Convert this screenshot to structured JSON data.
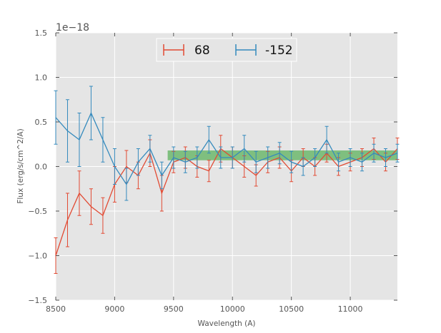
{
  "chart_data": {
    "type": "line",
    "title": "",
    "xlabel": "Wavelength (A)",
    "ylabel": "Flux (erg/s/cm^2/A)",
    "offset_text": "1e−18",
    "xlim": [
      8500,
      11400
    ],
    "ylim": [
      -1.5,
      1.5
    ],
    "xticks": [
      8500,
      9000,
      9500,
      10000,
      10500,
      11000
    ],
    "xtick_labels": [
      "8500",
      "9000",
      "9500",
      "10000",
      "10500",
      "11000"
    ],
    "yticks": [
      -1.5,
      -1.0,
      -0.5,
      0.0,
      0.5,
      1.0,
      1.5
    ],
    "ytick_labels": [
      "−1.5",
      "−1.0",
      "−0.5",
      "0.0",
      "0.5",
      "1.0",
      "1.5"
    ],
    "grid": true,
    "legend_position": "top-center",
    "band": {
      "x": [
        9450,
        11400
      ],
      "y": [
        0.07,
        0.18
      ],
      "color": "#2ca02c"
    },
    "series": [
      {
        "name": "68",
        "color": "#e24a33",
        "x": [
          8500,
          8600,
          8700,
          8800,
          8900,
          9000,
          9100,
          9200,
          9300,
          9400,
          9500,
          9600,
          9700,
          9800,
          9900,
          10000,
          10100,
          10200,
          10300,
          10400,
          10500,
          10600,
          10700,
          10800,
          10900,
          11000,
          11100,
          11200,
          11300,
          11400
        ],
        "y": [
          -1.0,
          -0.6,
          -0.3,
          -0.45,
          -0.55,
          -0.2,
          0.0,
          -0.1,
          0.15,
          -0.3,
          0.05,
          0.1,
          0.0,
          -0.05,
          0.2,
          0.1,
          0.0,
          -0.1,
          0.05,
          0.1,
          -0.05,
          0.1,
          0.0,
          0.15,
          0.0,
          0.05,
          0.1,
          0.2,
          0.05,
          0.2
        ],
        "err": [
          0.2,
          0.3,
          0.25,
          0.2,
          0.2,
          0.2,
          0.18,
          0.15,
          0.15,
          0.2,
          0.12,
          0.12,
          0.12,
          0.12,
          0.15,
          0.12,
          0.12,
          0.12,
          0.12,
          0.12,
          0.12,
          0.1,
          0.1,
          0.1,
          0.1,
          0.1,
          0.1,
          0.12,
          0.1,
          0.12
        ]
      },
      {
        "name": "-152",
        "color": "#348abd",
        "x": [
          8500,
          8600,
          8700,
          8800,
          8900,
          9000,
          9100,
          9200,
          9300,
          9400,
          9500,
          9600,
          9700,
          9800,
          9900,
          10000,
          10100,
          10200,
          10300,
          10400,
          10500,
          10600,
          10700,
          10800,
          10900,
          11000,
          11100,
          11200,
          11300,
          11400
        ],
        "y": [
          0.55,
          0.4,
          0.3,
          0.6,
          0.3,
          0.0,
          -0.2,
          0.05,
          0.2,
          -0.1,
          0.1,
          0.05,
          0.1,
          0.3,
          0.1,
          0.1,
          0.2,
          0.05,
          0.1,
          0.15,
          0.05,
          0.0,
          0.1,
          0.3,
          0.05,
          0.1,
          0.05,
          0.15,
          0.1,
          0.15
        ],
        "err": [
          0.3,
          0.35,
          0.3,
          0.3,
          0.25,
          0.2,
          0.18,
          0.15,
          0.15,
          0.15,
          0.12,
          0.12,
          0.12,
          0.15,
          0.12,
          0.12,
          0.15,
          0.12,
          0.12,
          0.12,
          0.12,
          0.1,
          0.1,
          0.15,
          0.1,
          0.1,
          0.1,
          0.1,
          0.1,
          0.1
        ]
      }
    ]
  }
}
